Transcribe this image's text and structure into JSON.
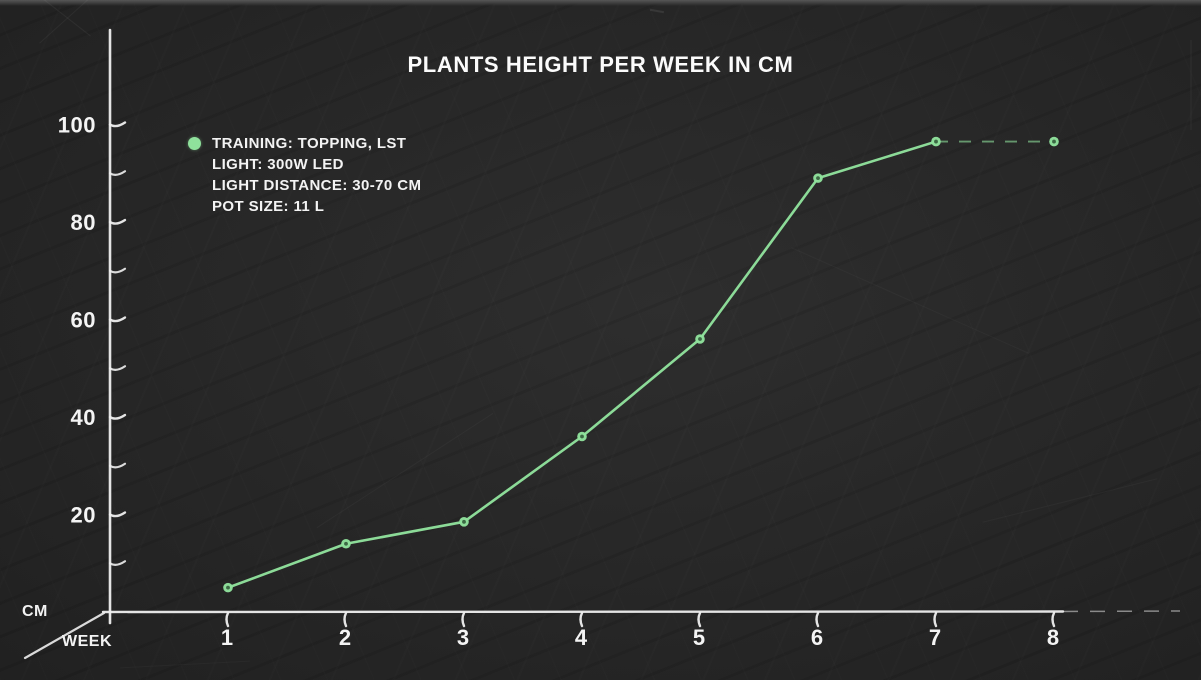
{
  "title": "PLANTS HEIGHT PER WEEK IN CM",
  "legend": {
    "marker": "green-dot",
    "lines": [
      "TRAINING: TOPPING, LST",
      "LIGHT: 300W LED",
      "LIGHT DISTANCE: 30-70 CM",
      "POT SIZE: 11 L"
    ]
  },
  "axes": {
    "y_unit_label": "CM",
    "x_unit_label": "WEEK"
  },
  "colors": {
    "line_green": "#8fe19c",
    "axis_white": "#efefef",
    "background": "#262626",
    "text": "#f3f3f3"
  },
  "chart_data": {
    "type": "line",
    "title": "PLANTS HEIGHT PER WEEK IN CM",
    "xlabel": "WEEK",
    "ylabel": "CM",
    "x": [
      1,
      2,
      3,
      4,
      5,
      6,
      7,
      8
    ],
    "values": [
      5,
      14,
      18.5,
      36,
      56,
      89,
      96.5,
      96.5
    ],
    "series_note": "single series; segment from week 7 to week 8 drawn dashed (flat projection)",
    "dashed_from_week": 7,
    "x_ticks": [
      1,
      2,
      3,
      4,
      5,
      6,
      7,
      8
    ],
    "y_tick_labels": [
      20,
      40,
      60,
      80,
      100
    ],
    "y_ticks_minor": [
      10,
      30,
      50,
      70,
      90
    ],
    "ylim": [
      0,
      110
    ],
    "grid": false,
    "legend_position": "top-left",
    "line_color": "#8fe19c",
    "axis_color": "#efefef",
    "background_color": "#262626",
    "marker_style": "filled circle with dark center (donut)"
  }
}
